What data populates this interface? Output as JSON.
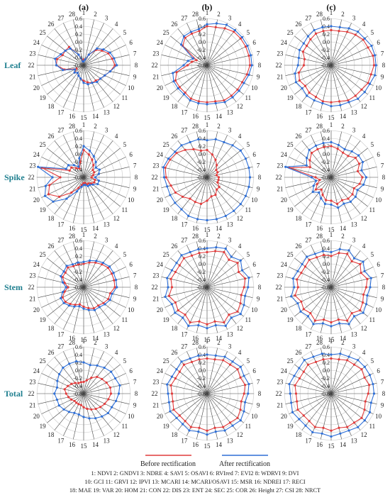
{
  "chart_data": {
    "type": "radar",
    "column_titles": [
      "(a)",
      "(b)",
      "(c)"
    ],
    "row_titles": [
      "Leaf",
      "Spike",
      "Stem",
      "Total"
    ],
    "axis_labels": [
      "1",
      "2",
      "3",
      "4",
      "5",
      "6",
      "7",
      "8",
      "9",
      "10",
      "11",
      "12",
      "13",
      "14",
      "15",
      "16",
      "17",
      "18",
      "19",
      "20",
      "21",
      "22",
      "23",
      "24",
      "25",
      "26",
      "27",
      "28"
    ],
    "radial_ticks": [
      "0.6",
      "0.4",
      "0.2",
      "0.0",
      "-0.2",
      "-0.4",
      "-0.6"
    ],
    "radial_range": [
      -0.6,
      0.6
    ],
    "legend": [
      {
        "label": "Before rectification",
        "color": "#e03c3c"
      },
      {
        "label": "After rectification",
        "color": "#2f6fd6"
      }
    ],
    "abbreviation_lines": [
      "1: NDVI  2: GNDVI  3: NDRE  4: SAVI  5: OSAVI  6: RVIred  7: EVI2  8: WDRVI  9: DVI",
      "10: GCI  11: GRVI  12: IPVI  13: MCARI  14: MCARI/OSAVI  15: MSR  16: NDREI  17: RECI",
      "18: MAE  19: VAR  20: HOM  21: CON  22: DIS  23: ENT  24: SEC  25: COR  26: Height  27: CSI  28: NRCT"
    ],
    "panels": [
      {
        "row": "Leaf",
        "col": "(a)",
        "before": [
          -0.45,
          -0.45,
          -0.3,
          -0.1,
          0.0,
          0.1,
          0.15,
          0.2,
          0.1,
          0.0,
          -0.05,
          -0.1,
          -0.1,
          -0.15,
          -0.2,
          -0.25,
          -0.3,
          -0.35,
          -0.3,
          -0.4,
          -0.1,
          0.1,
          0.1,
          0.0,
          0.0,
          0.0,
          -0.3,
          -0.5
        ],
        "after": [
          -0.5,
          -0.45,
          -0.3,
          -0.05,
          0.05,
          0.15,
          0.2,
          0.25,
          0.1,
          0.0,
          -0.05,
          -0.05,
          -0.1,
          -0.1,
          -0.15,
          -0.25,
          -0.3,
          -0.35,
          -0.3,
          -0.35,
          -0.05,
          0.1,
          0.15,
          0.05,
          0.0,
          -0.05,
          -0.3,
          -0.5
        ]
      },
      {
        "row": "Leaf",
        "col": "(b)",
        "before": [
          0.4,
          0.4,
          0.45,
          0.5,
          0.5,
          0.5,
          0.5,
          0.5,
          0.45,
          0.4,
          0.4,
          0.4,
          0.4,
          0.35,
          0.35,
          0.35,
          0.35,
          0.3,
          0.3,
          0.3,
          0.2,
          -0.1,
          -0.2,
          -0.3,
          0.2,
          0.3,
          0.3,
          0.3
        ],
        "after": [
          0.45,
          0.5,
          0.55,
          0.55,
          0.55,
          0.55,
          0.55,
          0.55,
          0.5,
          0.45,
          0.45,
          0.45,
          0.45,
          0.4,
          0.4,
          0.4,
          0.4,
          0.35,
          0.35,
          0.35,
          0.3,
          0.0,
          -0.1,
          -0.2,
          0.25,
          0.35,
          0.35,
          0.35
        ]
      },
      {
        "row": "Leaf",
        "col": "(c)",
        "before": [
          0.3,
          0.3,
          0.35,
          0.4,
          0.45,
          0.45,
          0.5,
          0.5,
          0.45,
          0.45,
          0.4,
          0.4,
          0.4,
          0.35,
          0.35,
          0.35,
          0.3,
          0.3,
          0.25,
          0.3,
          0.25,
          0.1,
          0.1,
          0.2,
          0.2,
          0.25,
          0.3,
          0.3
        ],
        "after": [
          0.4,
          0.4,
          0.45,
          0.5,
          0.5,
          0.55,
          0.55,
          0.55,
          0.55,
          0.5,
          0.5,
          0.5,
          0.45,
          0.45,
          0.45,
          0.4,
          0.4,
          0.4,
          0.35,
          0.4,
          0.35,
          0.25,
          0.25,
          0.3,
          0.3,
          0.35,
          0.4,
          0.4
        ]
      },
      {
        "row": "Spike",
        "col": "(a)",
        "before": [
          0.1,
          0.0,
          -0.1,
          -0.2,
          -0.3,
          -0.3,
          -0.35,
          -0.4,
          -0.3,
          -0.3,
          -0.35,
          -0.4,
          -0.4,
          -0.45,
          -0.45,
          -0.4,
          -0.3,
          -0.1,
          0.2,
          0.4,
          0.3,
          0.0,
          0.5,
          -0.2,
          -0.2,
          -0.3,
          -0.35,
          -0.2
        ],
        "after": [
          0.2,
          0.1,
          0.0,
          -0.1,
          -0.2,
          -0.15,
          -0.2,
          -0.3,
          -0.2,
          -0.2,
          -0.3,
          -0.35,
          -0.35,
          -0.4,
          -0.4,
          -0.35,
          -0.2,
          0.1,
          0.4,
          0.5,
          0.4,
          0.2,
          0.6,
          -0.1,
          -0.1,
          -0.2,
          -0.3,
          -0.1
        ]
      },
      {
        "row": "Spike",
        "col": "(b)",
        "before": [
          0.1,
          0.0,
          -0.1,
          -0.2,
          -0.3,
          -0.3,
          -0.35,
          -0.3,
          -0.3,
          -0.3,
          -0.2,
          -0.2,
          -0.1,
          -0.1,
          0.0,
          0.1,
          0.1,
          0.1,
          0.2,
          0.3,
          0.35,
          0.45,
          0.5,
          0.45,
          0.4,
          0.3,
          0.2,
          0.1
        ],
        "after": [
          0.35,
          0.4,
          0.4,
          0.45,
          0.5,
          0.5,
          0.5,
          0.5,
          0.5,
          0.5,
          0.5,
          0.5,
          0.5,
          0.5,
          0.5,
          0.5,
          0.5,
          0.45,
          0.45,
          0.45,
          0.45,
          0.5,
          0.55,
          0.5,
          0.45,
          0.45,
          0.4,
          0.4
        ]
      },
      {
        "row": "Spike",
        "col": "(c)",
        "before": [
          0.2,
          0.15,
          0.1,
          0.1,
          0.2,
          0.2,
          0.1,
          0.2,
          0.15,
          0.05,
          0.1,
          0.1,
          0.05,
          0.1,
          0.0,
          0.0,
          -0.1,
          -0.2,
          -0.1,
          -0.2,
          -0.3,
          -0.2,
          0.5,
          0.0,
          0.1,
          0.2,
          0.2,
          0.2
        ],
        "after": [
          0.3,
          0.25,
          0.2,
          0.25,
          0.3,
          0.3,
          0.2,
          0.3,
          0.25,
          0.15,
          0.2,
          0.2,
          0.15,
          0.2,
          0.1,
          0.1,
          0.0,
          -0.1,
          0.0,
          -0.1,
          -0.2,
          -0.1,
          0.6,
          0.1,
          0.2,
          0.3,
          0.3,
          0.3
        ]
      },
      {
        "row": "Stem",
        "col": "(a)",
        "before": [
          0.0,
          0.05,
          0.1,
          0.15,
          0.2,
          0.2,
          0.2,
          0.2,
          0.1,
          0.1,
          0.05,
          0.0,
          0.0,
          -0.05,
          -0.1,
          -0.15,
          -0.1,
          -0.05,
          0.0,
          0.0,
          -0.1,
          -0.2,
          -0.1,
          0.0,
          0.0,
          0.05,
          0.0,
          0.0
        ],
        "after": [
          0.05,
          0.1,
          0.15,
          0.2,
          0.25,
          0.25,
          0.25,
          0.25,
          0.15,
          0.15,
          0.1,
          0.05,
          0.05,
          0.0,
          -0.05,
          -0.1,
          -0.05,
          0.0,
          0.05,
          0.05,
          -0.05,
          -0.15,
          -0.05,
          0.05,
          0.05,
          0.1,
          0.05,
          0.05
        ]
      },
      {
        "row": "Stem",
        "col": "(b)",
        "before": [
          0.3,
          0.35,
          0.4,
          0.3,
          0.4,
          0.3,
          0.4,
          0.35,
          0.3,
          0.35,
          0.4,
          0.3,
          0.4,
          0.3,
          0.35,
          0.3,
          0.4,
          0.3,
          0.35,
          0.3,
          0.4,
          0.3,
          0.35,
          0.3,
          0.3,
          0.35,
          0.3,
          0.3
        ],
        "after": [
          0.4,
          0.45,
          0.5,
          0.4,
          0.5,
          0.4,
          0.5,
          0.45,
          0.4,
          0.45,
          0.5,
          0.4,
          0.5,
          0.4,
          0.45,
          0.4,
          0.5,
          0.4,
          0.45,
          0.4,
          0.5,
          0.4,
          0.45,
          0.4,
          0.4,
          0.45,
          0.4,
          0.4
        ]
      },
      {
        "row": "Stem",
        "col": "(c)",
        "before": [
          0.2,
          0.3,
          0.35,
          0.25,
          0.35,
          0.25,
          0.35,
          0.3,
          0.25,
          0.3,
          0.35,
          0.25,
          0.35,
          0.25,
          0.3,
          0.25,
          0.35,
          0.25,
          0.3,
          0.25,
          0.35,
          0.25,
          0.3,
          0.25,
          0.25,
          0.3,
          0.25,
          0.25
        ],
        "after": [
          0.3,
          0.4,
          0.45,
          0.35,
          0.45,
          0.35,
          0.45,
          0.4,
          0.35,
          0.4,
          0.45,
          0.35,
          0.45,
          0.35,
          0.4,
          0.35,
          0.45,
          0.35,
          0.4,
          0.35,
          0.45,
          0.35,
          0.4,
          0.35,
          0.35,
          0.4,
          0.35,
          0.35
        ]
      },
      {
        "row": "Total",
        "col": "(a)",
        "before": [
          -0.3,
          -0.25,
          -0.15,
          -0.05,
          0.0,
          0.05,
          0.1,
          0.1,
          0.05,
          0.0,
          -0.05,
          -0.1,
          -0.15,
          -0.2,
          -0.25,
          -0.3,
          -0.3,
          -0.3,
          -0.3,
          -0.25,
          -0.2,
          -0.15,
          -0.1,
          -0.15,
          -0.2,
          -0.25,
          -0.3,
          -0.3
        ],
        "after": [
          0.2,
          0.15,
          0.2,
          0.25,
          0.3,
          0.3,
          0.35,
          0.3,
          0.25,
          0.2,
          0.2,
          0.15,
          0.1,
          0.05,
          0.0,
          -0.05,
          -0.05,
          0.0,
          0.05,
          0.1,
          0.1,
          0.15,
          0.1,
          0.15,
          0.2,
          0.25,
          0.25,
          0.25
        ]
      },
      {
        "row": "Total",
        "col": "(b)",
        "before": [
          0.3,
          0.3,
          0.35,
          0.35,
          0.4,
          0.35,
          0.4,
          0.35,
          0.3,
          0.35,
          0.4,
          0.35,
          0.35,
          0.3,
          0.35,
          0.3,
          0.35,
          0.3,
          0.3,
          0.35,
          0.3,
          0.3,
          0.35,
          0.3,
          0.3,
          0.35,
          0.3,
          0.3
        ],
        "after": [
          0.4,
          0.4,
          0.45,
          0.45,
          0.5,
          0.45,
          0.5,
          0.45,
          0.4,
          0.45,
          0.5,
          0.45,
          0.45,
          0.4,
          0.45,
          0.4,
          0.45,
          0.4,
          0.4,
          0.45,
          0.4,
          0.4,
          0.45,
          0.4,
          0.4,
          0.45,
          0.4,
          0.4
        ]
      },
      {
        "row": "Total",
        "col": "(c)",
        "before": [
          0.3,
          0.3,
          0.35,
          0.35,
          0.4,
          0.35,
          0.4,
          0.35,
          0.3,
          0.35,
          0.4,
          0.35,
          0.35,
          0.3,
          0.35,
          0.3,
          0.35,
          0.3,
          0.3,
          0.35,
          0.3,
          0.3,
          0.35,
          0.3,
          0.3,
          0.35,
          0.3,
          0.3
        ],
        "after": [
          0.4,
          0.45,
          0.45,
          0.5,
          0.5,
          0.5,
          0.5,
          0.5,
          0.45,
          0.5,
          0.5,
          0.5,
          0.45,
          0.45,
          0.5,
          0.45,
          0.5,
          0.45,
          0.45,
          0.5,
          0.45,
          0.45,
          0.5,
          0.45,
          0.45,
          0.5,
          0.45,
          0.45
        ]
      }
    ]
  }
}
